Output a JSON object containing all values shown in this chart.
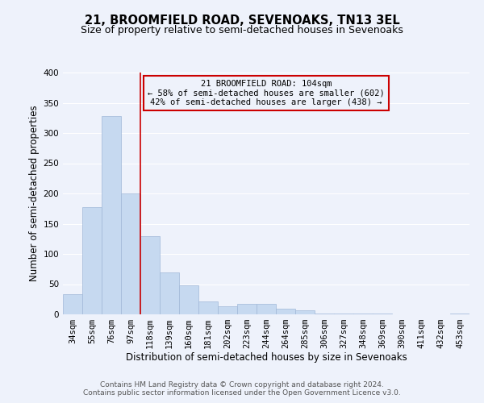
{
  "title": "21, BROOMFIELD ROAD, SEVENOAKS, TN13 3EL",
  "subtitle": "Size of property relative to semi-detached houses in Sevenoaks",
  "xlabel": "Distribution of semi-detached houses by size in Sevenoaks",
  "ylabel": "Number of semi-detached properties",
  "bar_labels": [
    "34sqm",
    "55sqm",
    "76sqm",
    "97sqm",
    "118sqm",
    "139sqm",
    "160sqm",
    "181sqm",
    "202sqm",
    "223sqm",
    "244sqm",
    "264sqm",
    "285sqm",
    "306sqm",
    "327sqm",
    "348sqm",
    "369sqm",
    "390sqm",
    "411sqm",
    "432sqm",
    "453sqm"
  ],
  "bar_values": [
    33,
    178,
    328,
    200,
    130,
    70,
    48,
    21,
    13,
    17,
    17,
    10,
    7,
    2,
    1,
    1,
    1,
    0,
    0,
    0,
    1
  ],
  "bar_color": "#c6d9f0",
  "bar_edge_color": "#a0b8d8",
  "property_line_x": 3.5,
  "annotation_text_line1": "21 BROOMFIELD ROAD: 104sqm",
  "annotation_text_line2": "← 58% of semi-detached houses are smaller (602)",
  "annotation_text_line3": "42% of semi-detached houses are larger (438) →",
  "annotation_box_color": "#cc0000",
  "vline_color": "#cc0000",
  "ylim": [
    0,
    400
  ],
  "yticks": [
    0,
    50,
    100,
    150,
    200,
    250,
    300,
    350,
    400
  ],
  "footer_line1": "Contains HM Land Registry data © Crown copyright and database right 2024.",
  "footer_line2": "Contains public sector information licensed under the Open Government Licence v3.0.",
  "bg_color": "#eef2fb",
  "grid_color": "#ffffff",
  "title_fontsize": 10.5,
  "subtitle_fontsize": 9,
  "axis_label_fontsize": 8.5,
  "tick_fontsize": 7.5,
  "annotation_fontsize": 7.5,
  "footer_fontsize": 6.5
}
